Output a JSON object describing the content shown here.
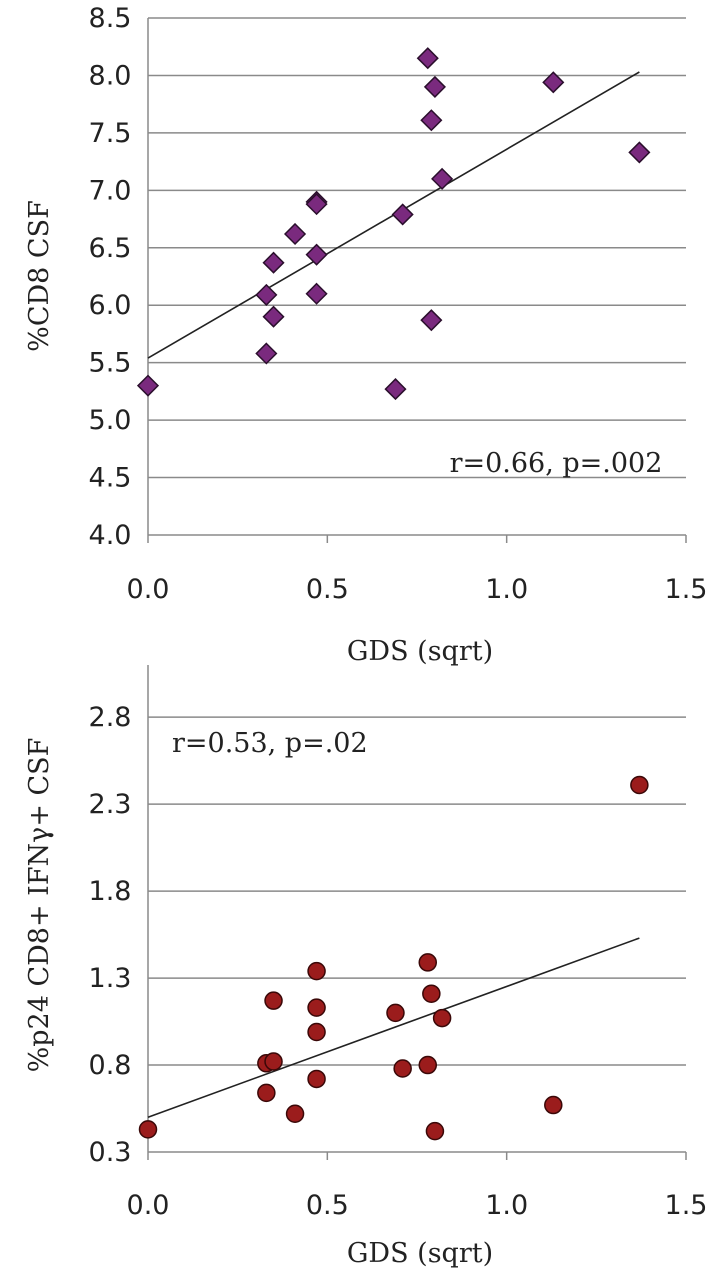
{
  "chart_data": [
    {
      "type": "scatter",
      "marker": "diamond",
      "marker_color": "#7a2a7e",
      "xlabel": "GDS (sqrt)",
      "ylabel": "%CD8 CSF",
      "xlim": [
        0,
        1.5
      ],
      "ylim": [
        4.0,
        8.5
      ],
      "x_ticks": [
        "0.0",
        "0.5",
        "1.0",
        "1.5"
      ],
      "y_ticks": [
        "4.0",
        "4.5",
        "5.0",
        "5.5",
        "6.0",
        "6.5",
        "7.0",
        "7.5",
        "8.0",
        "8.5"
      ],
      "grid": true,
      "annotation": "r=0.66, p=.002",
      "trendline": [
        [
          0,
          5.54
        ],
        [
          1.37,
          8.03
        ]
      ],
      "points": [
        {
          "x": 0.0,
          "y": 5.3
        },
        {
          "x": 0.33,
          "y": 6.09
        },
        {
          "x": 0.33,
          "y": 5.58
        },
        {
          "x": 0.35,
          "y": 6.37
        },
        {
          "x": 0.35,
          "y": 5.9
        },
        {
          "x": 0.41,
          "y": 6.62
        },
        {
          "x": 0.47,
          "y": 6.9
        },
        {
          "x": 0.47,
          "y": 6.88
        },
        {
          "x": 0.47,
          "y": 6.44
        },
        {
          "x": 0.47,
          "y": 6.1
        },
        {
          "x": 0.69,
          "y": 5.27
        },
        {
          "x": 0.71,
          "y": 6.79
        },
        {
          "x": 0.78,
          "y": 8.15
        },
        {
          "x": 0.79,
          "y": 7.61
        },
        {
          "x": 0.79,
          "y": 5.87
        },
        {
          "x": 0.8,
          "y": 7.9
        },
        {
          "x": 0.82,
          "y": 7.1
        },
        {
          "x": 1.13,
          "y": 7.94
        },
        {
          "x": 1.37,
          "y": 7.33
        }
      ]
    },
    {
      "type": "scatter",
      "marker": "circle",
      "marker_color": "#9b1c1c",
      "xlabel": "GDS (sqrt)",
      "ylabel": "%p24 CD8+ IFNγ+ CSF",
      "xlim": [
        0,
        1.5
      ],
      "ylim": [
        0.3,
        3.1
      ],
      "x_ticks": [
        "0.0",
        "0.5",
        "1.0",
        "1.5"
      ],
      "y_ticks": [
        "0.3",
        "0.8",
        "1.3",
        "1.8",
        "2.3",
        "2.8"
      ],
      "grid": true,
      "annotation": "r=0.53, p=.02",
      "trendline": [
        [
          0,
          0.5
        ],
        [
          1.37,
          1.53
        ]
      ],
      "points": [
        {
          "x": 0.0,
          "y": 0.43
        },
        {
          "x": 0.33,
          "y": 0.81
        },
        {
          "x": 0.33,
          "y": 0.64
        },
        {
          "x": 0.35,
          "y": 1.17
        },
        {
          "x": 0.35,
          "y": 0.82
        },
        {
          "x": 0.41,
          "y": 0.52
        },
        {
          "x": 0.47,
          "y": 1.34
        },
        {
          "x": 0.47,
          "y": 1.13
        },
        {
          "x": 0.47,
          "y": 0.99
        },
        {
          "x": 0.47,
          "y": 0.72
        },
        {
          "x": 0.69,
          "y": 1.1
        },
        {
          "x": 0.71,
          "y": 0.78
        },
        {
          "x": 0.78,
          "y": 1.39
        },
        {
          "x": 0.78,
          "y": 0.8
        },
        {
          "x": 0.79,
          "y": 1.21
        },
        {
          "x": 0.8,
          "y": 0.42
        },
        {
          "x": 0.82,
          "y": 1.07
        },
        {
          "x": 1.13,
          "y": 0.57
        },
        {
          "x": 1.37,
          "y": 2.41
        }
      ]
    }
  ]
}
